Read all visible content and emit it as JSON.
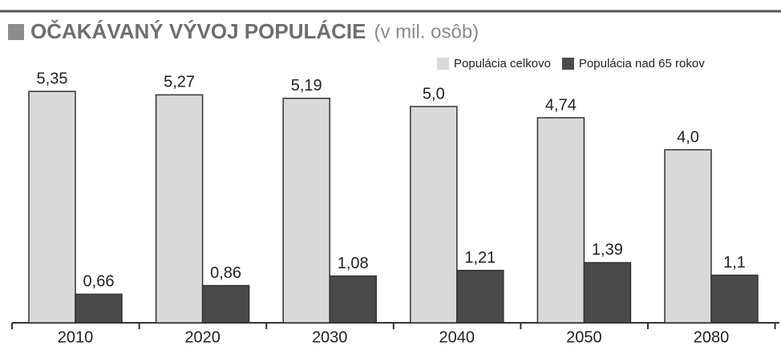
{
  "chart_data": {
    "type": "bar",
    "title": "OČAKÁVANÝ VÝVOJ POPULÁCIE",
    "subtitle": "(v mil. osôb)",
    "categories": [
      "2010",
      "2020",
      "2030",
      "2040",
      "2050",
      "2080"
    ],
    "series": [
      {
        "name": "Populácia celkovo",
        "color": "#d9d9d9",
        "values": [
          5.35,
          5.27,
          5.19,
          5.0,
          4.74,
          4.0
        ],
        "value_labels": [
          "5,35",
          "5,27",
          "5,19",
          "5,0",
          "4,74",
          "4,0"
        ]
      },
      {
        "name": "Populácia nad 65 rokov",
        "color": "#4a4a4a",
        "values": [
          0.66,
          0.86,
          1.08,
          1.21,
          1.39,
          1.1
        ],
        "value_labels": [
          "0,66",
          "0,86",
          "1,08",
          "1,21",
          "1,39",
          "1,1"
        ]
      }
    ]
  }
}
